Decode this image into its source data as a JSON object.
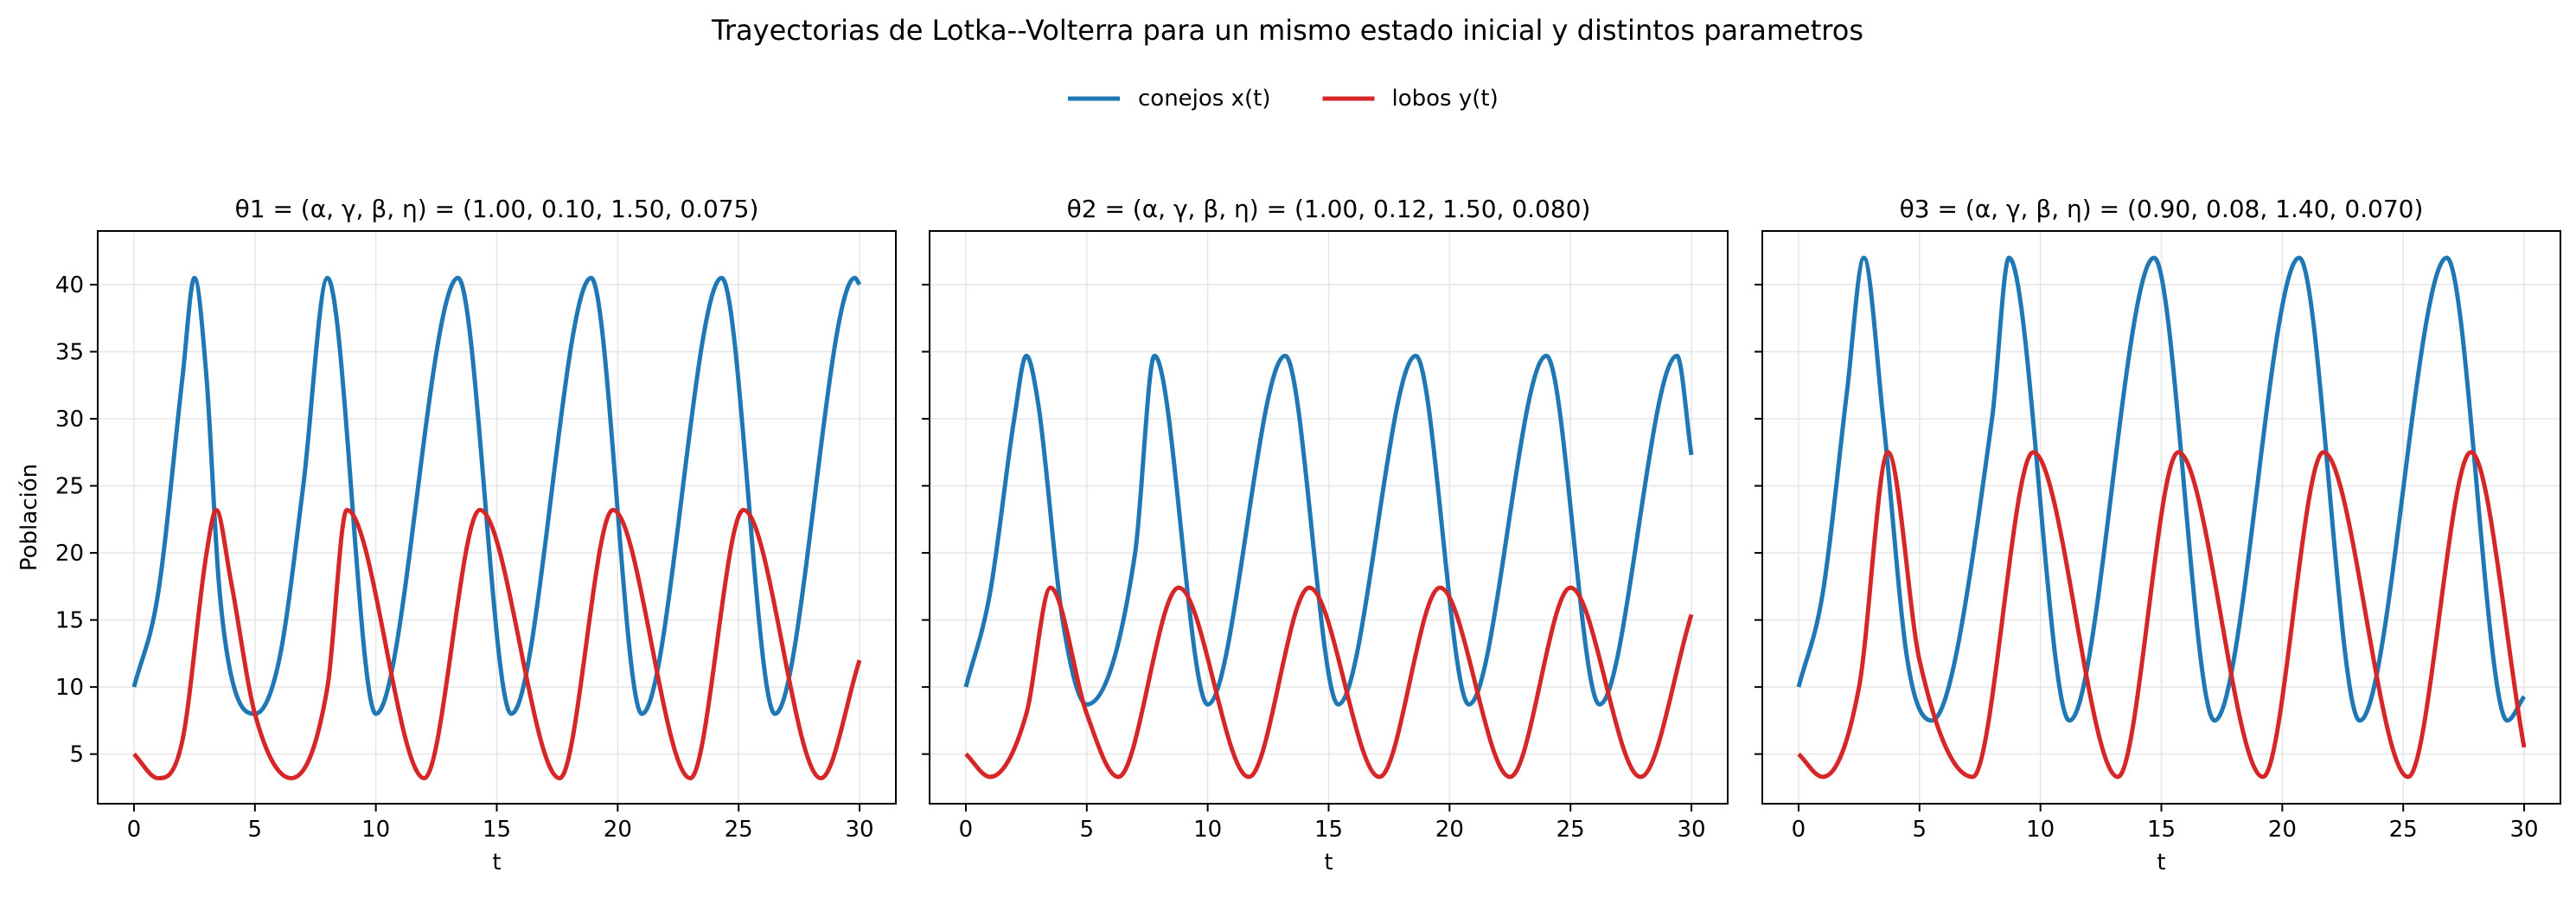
{
  "figure": {
    "suptitle": "Trayectorias de Lotka--Volterra para un mismo estado inicial y distintos parametros",
    "legend": [
      {
        "label": "conejos x(t)",
        "color": "#1f77b4"
      },
      {
        "label": "lobos y(t)",
        "color": "#d62728"
      }
    ],
    "legend_placement": "top-center"
  },
  "chart_data": [
    {
      "type": "line",
      "title": "θ1 = (α, γ, β, η) = (1.00, 0.10, 1.50, 0.075)",
      "xlabel": "t",
      "ylabel": "Población",
      "xlim": [
        -1.5,
        31.5
      ],
      "ylim": [
        1.3,
        44.0
      ],
      "xticks": [
        0,
        5,
        10,
        15,
        20,
        25,
        30
      ],
      "yticks": [
        5,
        10,
        15,
        20,
        25,
        30,
        35,
        40
      ],
      "grid": true,
      "params": {
        "alpha": 1.0,
        "gamma": 0.1,
        "beta": 1.5,
        "eta": 0.075
      },
      "initial_state": {
        "x0": 10,
        "y0": 5
      },
      "t_range": [
        0,
        30
      ],
      "series": [
        {
          "name": "conejos x(t)",
          "color": "#1f77b4",
          "x": [
            0,
            1,
            2,
            2.5,
            3,
            3.5,
            4,
            5,
            6,
            7,
            8,
            10,
            13.4,
            15.6,
            18.9,
            21,
            24.3,
            26.5,
            29.8,
            30
          ],
          "y": [
            10,
            17,
            33,
            40.5,
            33,
            18,
            11,
            8,
            12,
            25,
            40.5,
            8,
            40.5,
            8,
            40.5,
            8,
            40.5,
            8,
            40.5,
            40
          ]
        },
        {
          "name": "lobos y(t)",
          "color": "#d62728",
          "x": [
            0,
            1,
            2,
            3,
            3.4,
            4,
            5,
            6.5,
            8,
            8.8,
            12,
            14.3,
            17.6,
            19.8,
            23,
            25.2,
            28.4,
            30
          ],
          "y": [
            5,
            3.2,
            6,
            20,
            23.2,
            18,
            8,
            3.2,
            10,
            23.2,
            3.2,
            23.2,
            3.2,
            23.2,
            3.2,
            23.2,
            3.2,
            12
          ]
        }
      ]
    },
    {
      "type": "line",
      "title": "θ2 = (α, γ, β, η) = (1.00, 0.12, 1.50, 0.080)",
      "xlabel": "t",
      "ylabel": "",
      "xlim": [
        -1.5,
        31.5
      ],
      "ylim": [
        1.3,
        44.0
      ],
      "xticks": [
        0,
        5,
        10,
        15,
        20,
        25,
        30
      ],
      "yticks": [
        5,
        10,
        15,
        20,
        25,
        30,
        35,
        40
      ],
      "grid": true,
      "params": {
        "alpha": 1.0,
        "gamma": 0.12,
        "beta": 1.5,
        "eta": 0.08
      },
      "initial_state": {
        "x0": 10,
        "y0": 5
      },
      "t_range": [
        0,
        30
      ],
      "series": [
        {
          "name": "conejos x(t)",
          "color": "#1f77b4",
          "x": [
            0,
            1,
            2,
            2.5,
            3,
            4,
            5,
            7,
            7.8,
            10,
            13.2,
            15.4,
            18.6,
            20.8,
            24,
            26.2,
            29.4,
            30
          ],
          "y": [
            10,
            17,
            30,
            34.7,
            31,
            15,
            8.7,
            20,
            34.7,
            8.7,
            34.7,
            8.7,
            34.7,
            8.7,
            34.7,
            8.7,
            34.7,
            27.3
          ]
        },
        {
          "name": "lobos y(t)",
          "color": "#d62728",
          "x": [
            0,
            1,
            2.5,
            3.5,
            5,
            6.3,
            8.8,
            11.7,
            14.2,
            17.1,
            19.6,
            22.5,
            25,
            27.9,
            30
          ],
          "y": [
            5,
            3.3,
            8,
            17.4,
            8,
            3.3,
            17.4,
            3.3,
            17.4,
            3.3,
            17.4,
            3.3,
            17.4,
            3.3,
            15.4
          ]
        }
      ]
    },
    {
      "type": "line",
      "title": "θ3 = (α, γ, β, η) = (0.90, 0.08, 1.40, 0.070)",
      "xlabel": "t",
      "ylabel": "",
      "xlim": [
        -1.5,
        31.5
      ],
      "ylim": [
        1.3,
        44.0
      ],
      "xticks": [
        0,
        5,
        10,
        15,
        20,
        25,
        30
      ],
      "yticks": [
        5,
        10,
        15,
        20,
        25,
        30,
        35,
        40
      ],
      "grid": true,
      "params": {
        "alpha": 0.9,
        "gamma": 0.08,
        "beta": 1.4,
        "eta": 0.07
      },
      "initial_state": {
        "x0": 10,
        "y0": 5
      },
      "t_range": [
        0,
        30
      ],
      "series": [
        {
          "name": "conejos x(t)",
          "color": "#1f77b4",
          "x": [
            0,
            1,
            2,
            2.7,
            3.5,
            4.5,
            5.5,
            8,
            8.7,
            11.2,
            14.7,
            17.2,
            20.7,
            23.2,
            26.8,
            29.3,
            30
          ],
          "y": [
            10,
            17,
            32,
            42,
            30,
            12,
            7.5,
            30,
            42,
            7.5,
            42,
            7.5,
            42,
            7.5,
            42,
            7.5,
            9.3
          ]
        },
        {
          "name": "lobos y(t)",
          "color": "#d62728",
          "x": [
            0,
            1,
            2.5,
            3.7,
            5,
            7.2,
            9.7,
            13.2,
            15.7,
            19.2,
            21.7,
            25.2,
            27.8,
            30
          ],
          "y": [
            5,
            3.3,
            10,
            27.5,
            12,
            3.3,
            27.5,
            3.3,
            27.5,
            3.3,
            27.5,
            3.3,
            27.5,
            5.5
          ]
        }
      ]
    }
  ]
}
